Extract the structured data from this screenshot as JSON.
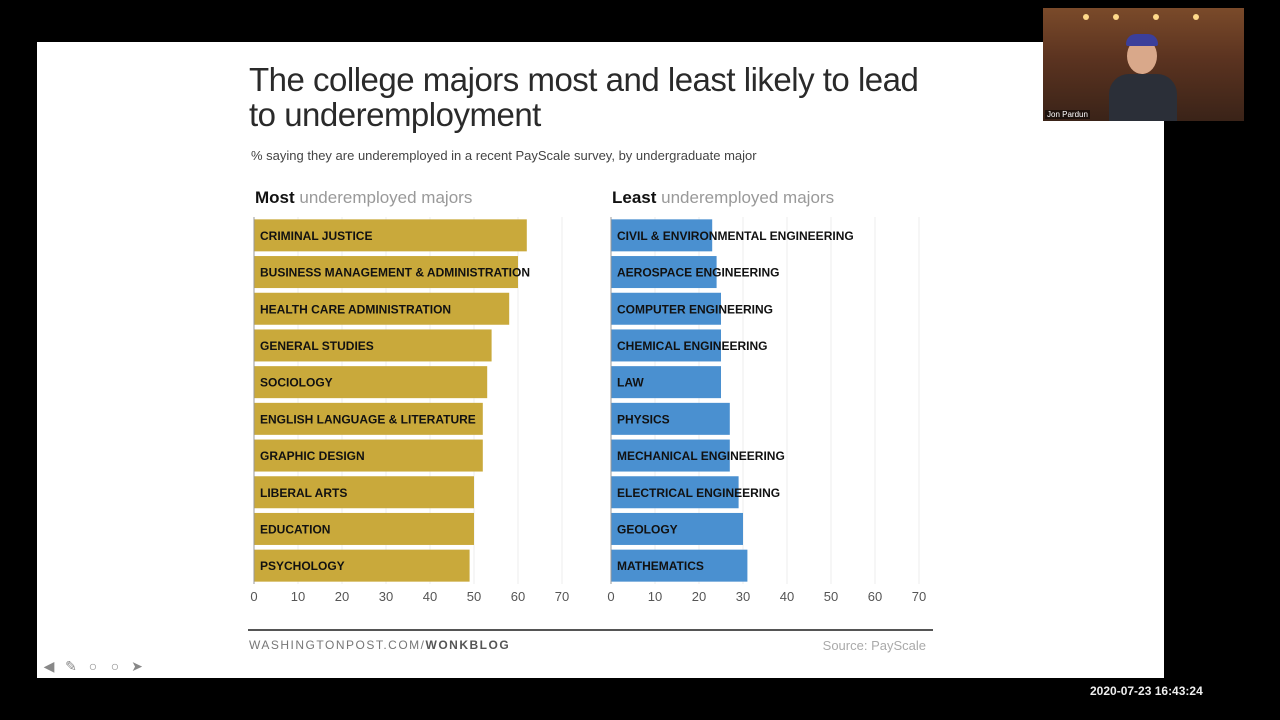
{
  "slide": {
    "title": "The college majors most and least likely to lead to underemployment",
    "subtitle": "% saying they are underemployed in a recent PayScale survey, by undergraduate major",
    "footer_left_plain": "WASHINGTONPOST.COM/",
    "footer_left_bold": "WONKBLOG",
    "footer_right": "Source: PayScale"
  },
  "webcam": {
    "name": "Jon Pardun"
  },
  "timestamp": "2020-07-23 16:43:24",
  "colors": {
    "most": "#c9a93b",
    "least": "#4a90d0",
    "grid": "#eeeeee",
    "text": "#111111"
  },
  "chart_data": [
    {
      "type": "bar",
      "orientation": "horizontal",
      "title_bold": "Most",
      "title_rest": " underemployed majors",
      "categories": [
        "CRIMINAL JUSTICE",
        "BUSINESS MANAGEMENT & ADMINISTRATION",
        "HEALTH CARE ADMINISTRATION",
        "GENERAL STUDIES",
        "SOCIOLOGY",
        "ENGLISH LANGUAGE & LITERATURE",
        "GRAPHIC DESIGN",
        "LIBERAL ARTS",
        "EDUCATION",
        "PSYCHOLOGY"
      ],
      "values": [
        62,
        60,
        58,
        54,
        53,
        52,
        52,
        50,
        50,
        49
      ],
      "xlim": [
        0,
        70
      ],
      "ticks": [
        0,
        10,
        20,
        30,
        40,
        50,
        60,
        70
      ],
      "color": "#c9a93b"
    },
    {
      "type": "bar",
      "orientation": "horizontal",
      "title_bold": "Least",
      "title_rest": " underemployed majors",
      "categories": [
        "CIVIL & ENVIRONMENTAL ENGINEERING",
        "AEROSPACE ENGINEERING",
        "COMPUTER ENGINEERING",
        "CHEMICAL ENGINEERING",
        "LAW",
        "PHYSICS",
        "MECHANICAL ENGINEERING",
        "ELECTRICAL ENGINEERING",
        "GEOLOGY",
        "MATHEMATICS"
      ],
      "values": [
        23,
        24,
        25,
        25,
        25,
        27,
        27,
        29,
        30,
        31
      ],
      "xlim": [
        0,
        70
      ],
      "ticks": [
        0,
        10,
        20,
        30,
        40,
        50,
        60,
        70
      ],
      "color": "#4a90d0"
    }
  ]
}
